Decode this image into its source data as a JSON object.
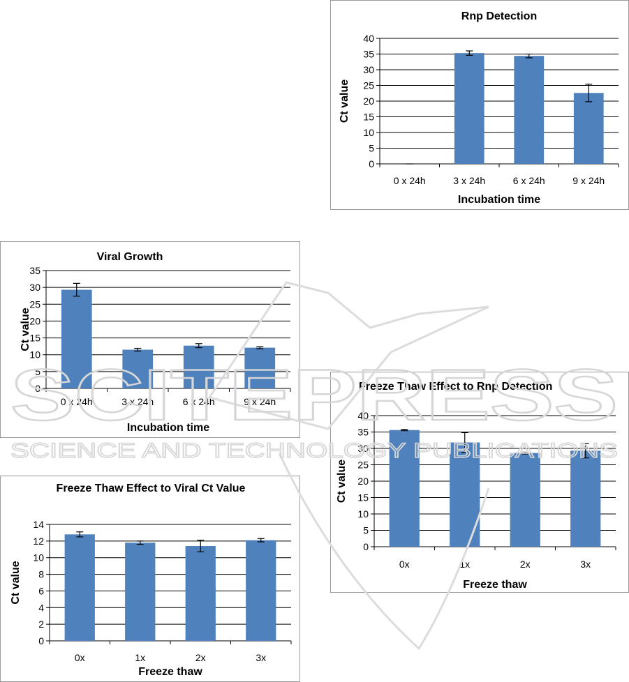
{
  "chart_data": [
    {
      "type": "bar",
      "title": "Rnp Detection",
      "xlabel": "Incubation time",
      "ylabel": "Ct value",
      "categories": [
        "0 x 24h",
        "3 x 24h",
        "6 x 24h",
        "9 x 24h"
      ],
      "values": [
        0,
        35.3,
        34.4,
        22.6
      ],
      "errors": [
        0,
        0.7,
        0.6,
        2.8
      ],
      "ylim": [
        0,
        40
      ],
      "yticks": [
        0,
        5,
        10,
        15,
        20,
        25,
        30,
        35,
        40
      ],
      "grid": true,
      "legend": "none",
      "bar_color": "#4f81bd"
    },
    {
      "type": "bar",
      "title": "Viral Growth",
      "xlabel": "Incubation time",
      "ylabel": "Ct value",
      "categories": [
        "0 x 24h",
        "3 x 24h",
        "6 x 24h",
        "9 x 24h"
      ],
      "values": [
        29.3,
        11.5,
        12.7,
        12.1
      ],
      "errors": [
        1.9,
        0.4,
        0.6,
        0.3
      ],
      "ylim": [
        0,
        35
      ],
      "yticks": [
        0,
        5,
        10,
        15,
        20,
        25,
        30,
        35
      ],
      "grid": true,
      "legend": "none",
      "bar_color": "#4f81bd"
    },
    {
      "type": "bar",
      "title": "Freeze Thaw Effect to Rnp Detection",
      "xlabel": "Freeze thaw",
      "ylabel": "Ct value",
      "categories": [
        "0x",
        "1x",
        "2x",
        "3x"
      ],
      "values": [
        35.6,
        31.8,
        28.6,
        29.3
      ],
      "errors": [
        0.2,
        3.0,
        0.3,
        2.2
      ],
      "ylim": [
        0,
        40
      ],
      "yticks": [
        0,
        5,
        10,
        15,
        20,
        25,
        30,
        35,
        40
      ],
      "grid": true,
      "legend": "none",
      "bar_color": "#4f81bd"
    },
    {
      "type": "bar",
      "title": "Freeze Thaw Effect to Viral Ct Value",
      "xlabel": "Freeze thaw",
      "ylabel": "Ct value",
      "categories": [
        "0x",
        "1x",
        "2x",
        "3x"
      ],
      "values": [
        12.8,
        11.8,
        11.4,
        12.1
      ],
      "errors": [
        0.3,
        0.2,
        0.7,
        0.2
      ],
      "ylim": [
        0,
        14
      ],
      "yticks": [
        0,
        2,
        4,
        6,
        8,
        10,
        12,
        14
      ],
      "grid": true,
      "legend": "none",
      "bar_color": "#4f81bd"
    }
  ],
  "watermark": {
    "main": "SCITEPRESS",
    "sub": "SCIENCE AND TECHNOLOGY PUBLICATIONS"
  }
}
